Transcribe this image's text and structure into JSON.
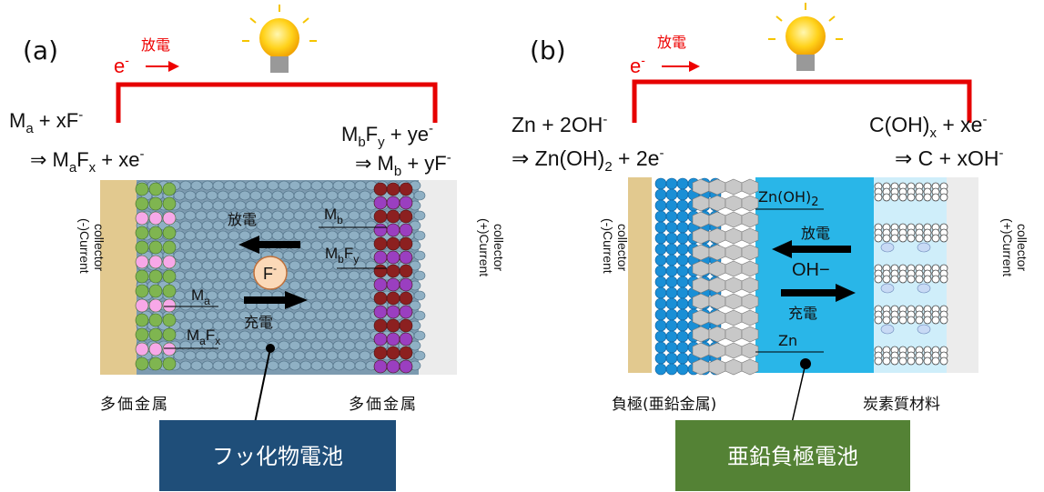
{
  "panel_a": {
    "label": "(a)",
    "electron": [
      "e",
      "-"
    ],
    "wire_discharge": "放電",
    "anode_reaction": {
      "line1": [
        "M",
        "a",
        " + xF",
        "-"
      ],
      "line2": [
        "⇒ M",
        "a",
        "F",
        "x",
        " + xe",
        "-"
      ]
    },
    "cathode_reaction": {
      "line1": [
        "M",
        "b",
        "F",
        "y",
        " + ye",
        "-"
      ],
      "line2": [
        "⇒ M",
        "b",
        " + yF",
        "-"
      ]
    },
    "discharge": "放電",
    "ion": [
      "F",
      "-"
    ],
    "charge": "充電",
    "anode_metal": [
      "M",
      "a"
    ],
    "anode_fluoride": [
      "M",
      "a",
      "F",
      "x"
    ],
    "cathode_metal": [
      "M",
      "b"
    ],
    "cathode_fluoride": [
      "M",
      "b",
      "F",
      "y"
    ],
    "left_collector": [
      "(-)Current",
      "collector"
    ],
    "right_collector": [
      "(+)Current",
      "collector"
    ],
    "left_caption": "多価金属",
    "right_caption": "多価金属",
    "banner": "フッ化物電池"
  },
  "panel_b": {
    "label": "(b)",
    "electron": [
      "e",
      "-"
    ],
    "wire_discharge": "放電",
    "anode_reaction": {
      "line1": [
        "Zn + 2OH",
        "-"
      ],
      "line2": [
        "⇒ Zn(OH)",
        "2",
        " + 2e",
        "-"
      ]
    },
    "cathode_reaction": {
      "line1": [
        "C(OH)",
        "x",
        " + xe",
        "-"
      ],
      "line2": [
        "⇒ C + xOH",
        "-"
      ]
    },
    "product": [
      "Zn(OH)",
      "2"
    ],
    "discharge": "放電",
    "ion": "OH−",
    "charge": "充電",
    "metal": "Zn",
    "left_collector": [
      "(-)Current",
      "collector"
    ],
    "right_collector": [
      "(+)Current",
      "collector"
    ],
    "left_caption": "負極(亜鉛金属)",
    "right_caption": "炭素質材料",
    "banner": "亜鉛負極電池"
  }
}
